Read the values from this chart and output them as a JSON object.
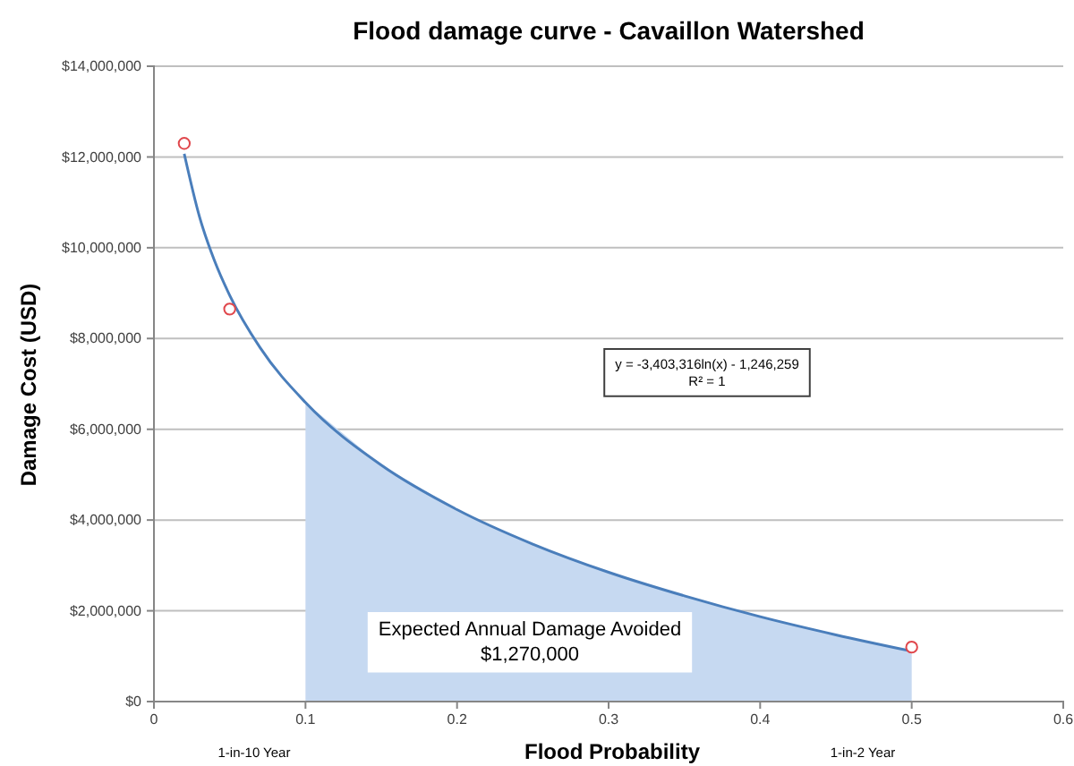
{
  "chart_data": {
    "type": "line",
    "title": "Flood damage curve - Cavaillon Watershed",
    "xlabel": "Flood Probability",
    "ylabel": "Damage Cost (USD)",
    "xlim": [
      0,
      0.6
    ],
    "xticks": [
      0,
      0.1,
      0.2,
      0.3,
      0.4,
      0.5,
      0.6
    ],
    "ylim": [
      0,
      14000000
    ],
    "yticks": [
      {
        "value": 0,
        "label": "$0"
      },
      {
        "value": 2000000,
        "label": "$2,000,000"
      },
      {
        "value": 4000000,
        "label": "$4,000,000"
      },
      {
        "value": 6000000,
        "label": "$6,000,000"
      },
      {
        "value": 8000000,
        "label": "$8,000,000"
      },
      {
        "value": 10000000,
        "label": "$10,000,000"
      },
      {
        "value": 12000000,
        "label": "$12,000,000"
      },
      {
        "value": 14000000,
        "label": "$14,000,000"
      }
    ],
    "grid": "y",
    "series": [
      {
        "type": "area",
        "color": "#c6d9f1",
        "x": [
          0.1,
          0.15,
          0.2,
          0.25,
          0.3,
          0.35,
          0.4,
          0.45,
          0.5
        ],
        "values": [
          6590000,
          5210000,
          4230000,
          3470000,
          2850000,
          2330000,
          1870000,
          1470000,
          1110000
        ]
      },
      {
        "type": "line",
        "color": "#4a7ebb",
        "line_style": "solid",
        "marker": "none",
        "x": [
          0.02,
          0.03,
          0.04,
          0.05,
          0.07,
          0.1,
          0.15,
          0.2,
          0.25,
          0.3,
          0.35,
          0.4,
          0.45,
          0.5
        ],
        "values": [
          12070000,
          10690000,
          9710000,
          8950000,
          7800000,
          6590000,
          5210000,
          4230000,
          3470000,
          2850000,
          2330000,
          1870000,
          1470000,
          1110000
        ]
      },
      {
        "type": "scatter",
        "color": "#e0474c",
        "marker": "circle",
        "x": [
          0.02,
          0.05,
          0.5
        ],
        "values": [
          12300000,
          8650000,
          1200000
        ]
      }
    ],
    "annotations": [
      "y = -3,403,316ln(x) - 1,246,259\nR² = 1",
      "Expected Annual Damage Avoided\n$1,270,000",
      "1-in-10 Year",
      "1-in-2 Year"
    ]
  }
}
